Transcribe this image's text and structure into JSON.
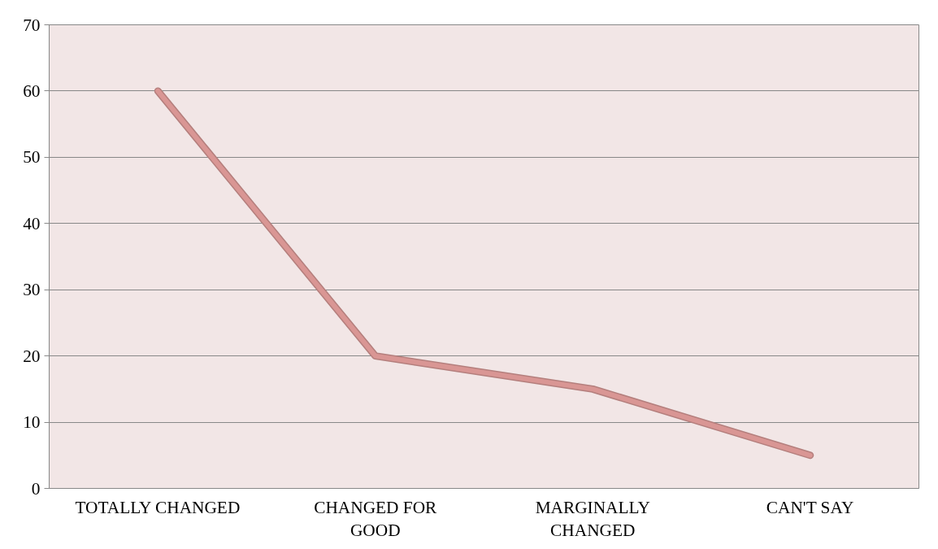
{
  "chart_data": {
    "type": "line",
    "categories": [
      "TOTALLY CHANGED",
      "CHANGED FOR GOOD",
      "MARGINALLY CHANGED",
      "CAN'T SAY"
    ],
    "series": [
      {
        "color": "#d99694",
        "values": [
          60,
          20,
          15,
          5
        ]
      }
    ],
    "ylim": [
      0,
      70
    ],
    "yticks": [
      0,
      10,
      20,
      30,
      40,
      50,
      60,
      70
    ],
    "grid": "y",
    "marker": "none",
    "line_style": "solid"
  }
}
